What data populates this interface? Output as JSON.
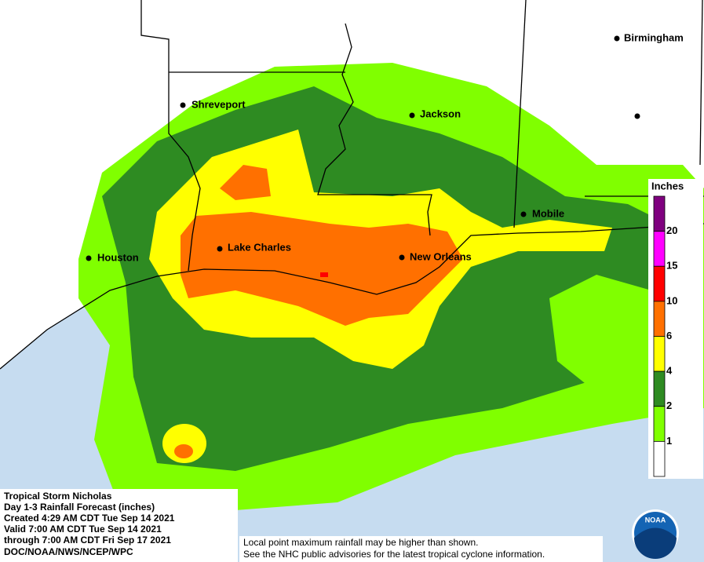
{
  "map": {
    "cities": [
      "Birmingham",
      "Shreveport",
      "Jackson",
      "Houston",
      "Lake Charles",
      "New Orleans",
      "Mobile"
    ],
    "legend": {
      "title": "Inches",
      "bins": [
        {
          "color": "#7f007f"
        },
        {
          "label": "20",
          "color": "#ff00ff"
        },
        {
          "label": "15",
          "color": "#ff0000"
        },
        {
          "label": "10",
          "color": "#ff7000"
        },
        {
          "label": "6",
          "color": "#ffff00"
        },
        {
          "label": "4",
          "color": "#2e8b22"
        },
        {
          "label": "2",
          "color": "#80ff00"
        },
        {
          "label": "1",
          "color": "#ffffff"
        }
      ]
    },
    "info": [
      "Tropical Storm Nicholas",
      "Day 1-3 Rainfall Forecast (inches)",
      "Created 4:29 AM CDT Tue Sep 14 2021",
      "Valid 7:00 AM CDT Tue Sep 14 2021",
      "through 7:00 AM CDT Fri Sep 17 2021",
      "DOC/NOAA/NWS/NCEP/WPC"
    ],
    "disclaimer": [
      "Local point maximum rainfall may be higher than shown.",
      "See the NHC public advisories for the latest tropical cyclone information."
    ],
    "logo": "NOAA"
  }
}
